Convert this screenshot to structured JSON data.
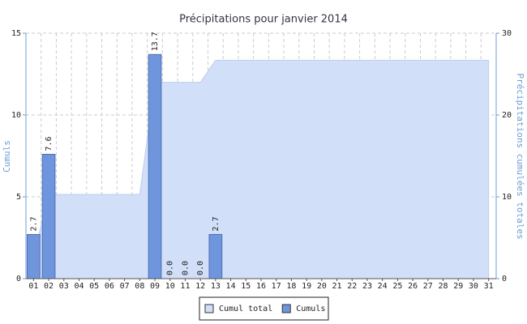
{
  "chart_data": {
    "type": "bar-area",
    "title": "Précipitations pour janvier 2014",
    "y_label": "Cumuls",
    "y2_label": "Précipitations cumulées totales",
    "categories": [
      "01",
      "02",
      "03",
      "04",
      "05",
      "06",
      "07",
      "08",
      "09",
      "10",
      "11",
      "12",
      "13",
      "14",
      "15",
      "16",
      "17",
      "18",
      "19",
      "20",
      "21",
      "22",
      "23",
      "24",
      "25",
      "26",
      "27",
      "28",
      "29",
      "30",
      "31"
    ],
    "series": [
      {
        "name": "Cumul total",
        "type": "area",
        "axis": "y2",
        "color": "#d2dff8",
        "values": [
          2.7,
          10.3,
          10.3,
          10.3,
          10.3,
          10.3,
          10.3,
          10.3,
          24.0,
          24.0,
          24.0,
          24.0,
          26.7,
          26.7,
          26.7,
          26.7,
          26.7,
          26.7,
          26.7,
          26.7,
          26.7,
          26.7,
          26.7,
          26.7,
          26.7,
          26.7,
          26.7,
          26.7,
          26.7,
          26.7,
          26.7
        ]
      },
      {
        "name": "Cumuls",
        "type": "bar",
        "color": "#6f95dc",
        "values": [
          2.7,
          7.6,
          null,
          null,
          null,
          null,
          null,
          null,
          13.7,
          0,
          0,
          0,
          2.7,
          null,
          null,
          null,
          null,
          null,
          null,
          null,
          null,
          null,
          null,
          null,
          null,
          null,
          null,
          null,
          null,
          null,
          null
        ],
        "value_labels": [
          "2.7",
          "7.6",
          null,
          null,
          null,
          null,
          null,
          null,
          "13.7",
          "0.0",
          "0.0",
          "0.0",
          "2.7",
          null,
          null,
          null,
          null,
          null,
          null,
          null,
          null,
          null,
          null,
          null,
          null,
          null,
          null,
          null,
          null,
          null,
          null
        ]
      }
    ],
    "ylim": [
      0,
      15
    ],
    "yticks": [
      0,
      5,
      10,
      15
    ],
    "y2lim": [
      0,
      30
    ],
    "y2ticks": [
      0,
      10,
      20,
      30
    ],
    "grid": true,
    "legend": "bottom"
  }
}
